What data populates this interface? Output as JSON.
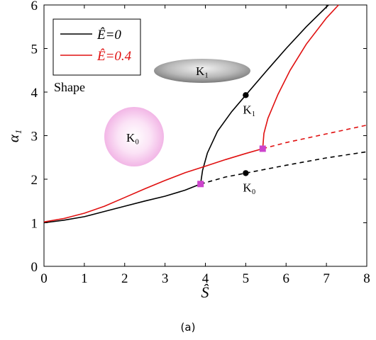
{
  "chart_data": {
    "type": "line",
    "xlabel": "Ŝ",
    "ylabel": "α₁",
    "xlim": [
      0,
      8
    ],
    "ylim": [
      0,
      6
    ],
    "x_ticks": [
      "0",
      "1",
      "2",
      "3",
      "4",
      "5",
      "6",
      "7",
      "8"
    ],
    "y_ticks": [
      "0",
      "1",
      "2",
      "3",
      "4",
      "5",
      "6"
    ],
    "grid": false,
    "legend_position": "top-left",
    "series": [
      {
        "name": "Ê=0",
        "color": "#000000",
        "stable": [
          [
            0,
            1.0
          ],
          [
            0.5,
            1.06
          ],
          [
            1,
            1.14
          ],
          [
            1.5,
            1.26
          ],
          [
            2,
            1.38
          ],
          [
            2.5,
            1.5
          ],
          [
            3,
            1.61
          ],
          [
            3.5,
            1.75
          ],
          [
            3.88,
            1.89
          ]
        ],
        "unstable": [
          [
            3.88,
            1.89
          ],
          [
            4.5,
            2.05
          ],
          [
            5,
            2.14
          ],
          [
            6,
            2.32
          ],
          [
            7,
            2.49
          ],
          [
            8,
            2.63
          ]
        ],
        "upper": [
          [
            3.88,
            1.89
          ],
          [
            3.93,
            2.2
          ],
          [
            4.05,
            2.6
          ],
          [
            4.3,
            3.1
          ],
          [
            4.65,
            3.55
          ],
          [
            5,
            3.93
          ],
          [
            5.5,
            4.47
          ],
          [
            6,
            5.0
          ],
          [
            6.5,
            5.5
          ],
          [
            7.05,
            6.0
          ]
        ]
      },
      {
        "name": "Ê=0.4",
        "color": "#e01010",
        "stable": [
          [
            0,
            1.02
          ],
          [
            0.5,
            1.1
          ],
          [
            1,
            1.22
          ],
          [
            1.5,
            1.38
          ],
          [
            2,
            1.58
          ],
          [
            2.5,
            1.78
          ],
          [
            3,
            1.97
          ],
          [
            3.5,
            2.15
          ],
          [
            4,
            2.3
          ],
          [
            4.5,
            2.45
          ],
          [
            5,
            2.59
          ],
          [
            5.42,
            2.7
          ]
        ],
        "unstable": [
          [
            5.42,
            2.7
          ],
          [
            6,
            2.84
          ],
          [
            7,
            3.04
          ],
          [
            8,
            3.24
          ]
        ],
        "upper": [
          [
            5.42,
            2.7
          ],
          [
            5.45,
            3.05
          ],
          [
            5.55,
            3.4
          ],
          [
            5.8,
            3.95
          ],
          [
            6.1,
            4.5
          ],
          [
            6.5,
            5.1
          ],
          [
            7,
            5.7
          ],
          [
            7.3,
            6.0
          ]
        ]
      }
    ],
    "bifurcation_points": [
      [
        3.88,
        1.89
      ],
      [
        5.42,
        2.7
      ]
    ],
    "marker_points": [
      {
        "x": 5.0,
        "y": 3.93,
        "label": "K₁"
      },
      {
        "x": 5.0,
        "y": 2.14,
        "label": "K₀"
      }
    ]
  },
  "shape_label": "Shape",
  "k1_shape_label": "K₁",
  "k0_shape_label": "K₀",
  "caption": "(a)",
  "colors": {
    "black": "#000000",
    "red": "#e01010",
    "marker": "#cc44cc"
  }
}
